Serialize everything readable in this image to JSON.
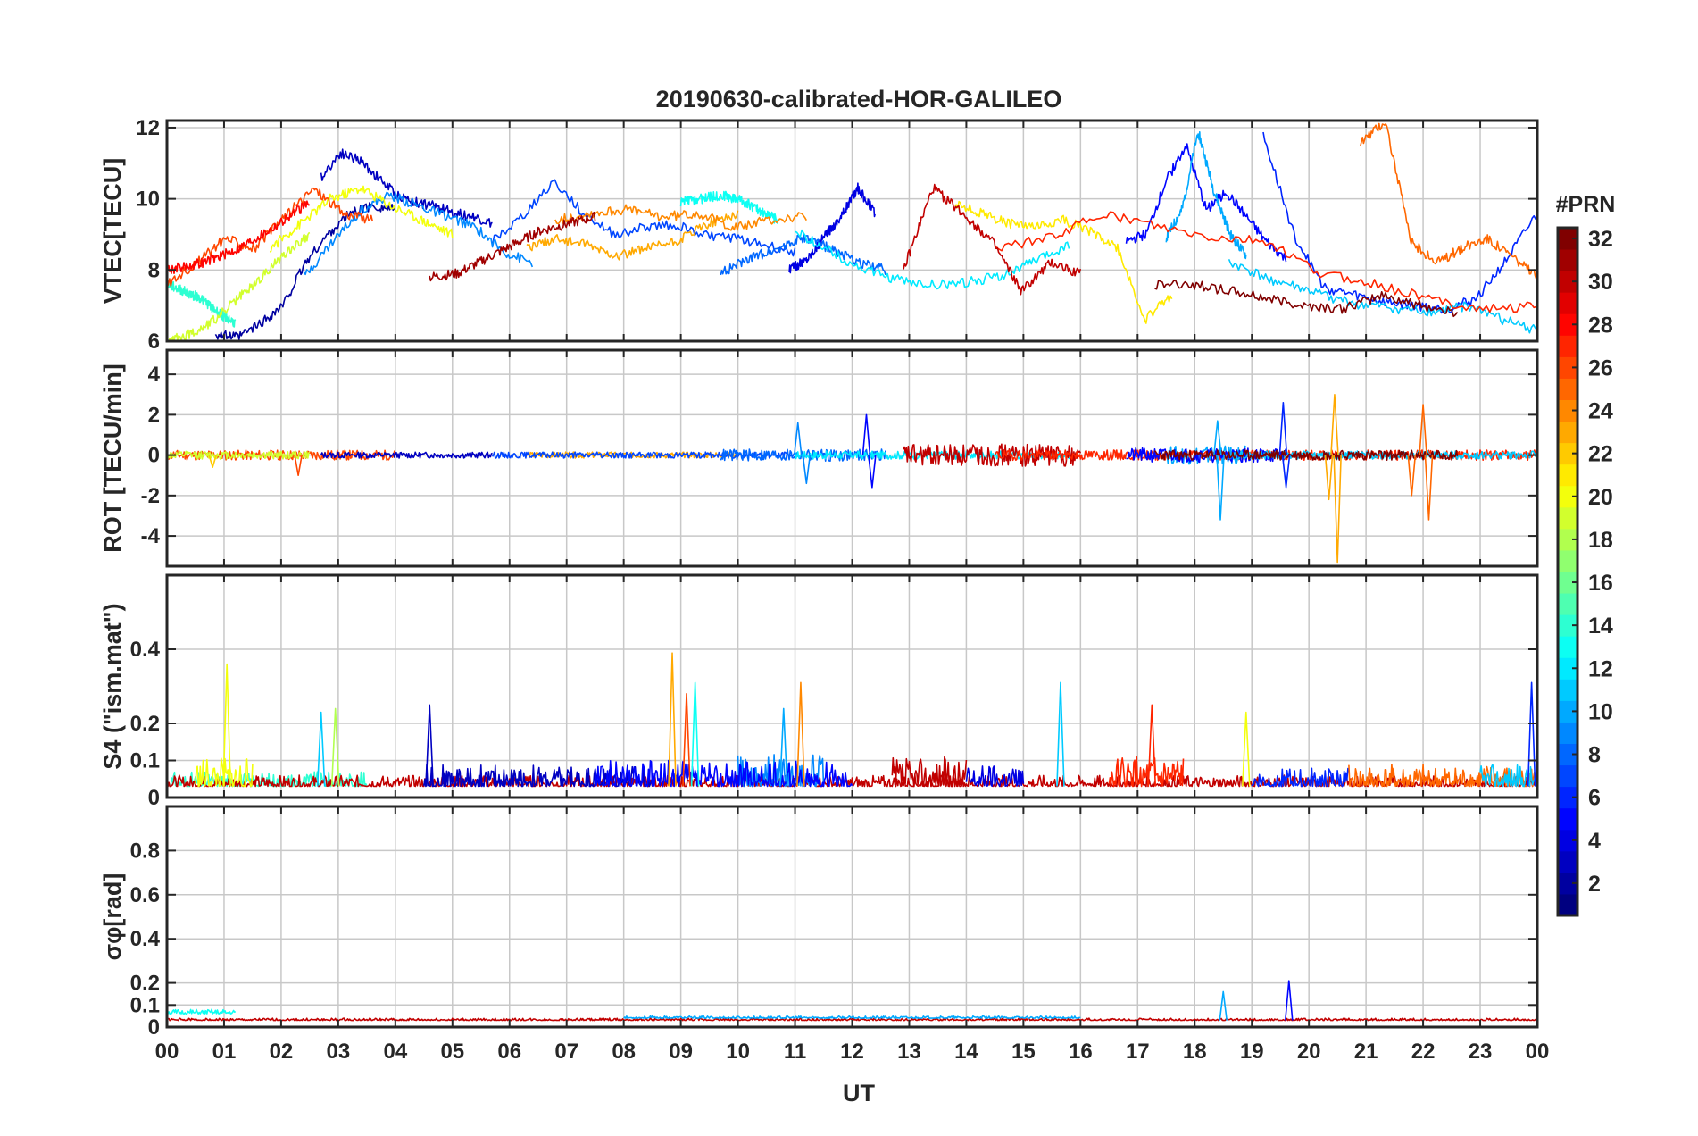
{
  "chart_data": {
    "type": "line",
    "title": "20190630-calibrated-HOR-GALILEO",
    "xlabel": "UT",
    "x_ticks": [
      "00",
      "01",
      "02",
      "03",
      "04",
      "05",
      "06",
      "07",
      "08",
      "09",
      "10",
      "11",
      "12",
      "13",
      "14",
      "15",
      "16",
      "17",
      "18",
      "19",
      "20",
      "21",
      "22",
      "23",
      "00"
    ],
    "xlim": [
      0,
      24
    ],
    "grid": true,
    "colorbar": {
      "title": "#PRN",
      "range": [
        1,
        32
      ],
      "ticks": [
        2,
        4,
        6,
        8,
        10,
        12,
        14,
        16,
        18,
        20,
        22,
        24,
        26,
        28,
        30,
        32
      ],
      "colormap": "jet"
    },
    "panels": [
      {
        "id": "vtec",
        "ylabel": "VTEC[TECU]",
        "ylim": [
          6,
          12.2
        ],
        "yticks": [
          6,
          8,
          10,
          12
        ],
        "series": [
          {
            "prn": 2,
            "segments": [
              {
                "x0": 0.85,
                "x1": 4.0,
                "pts": [
                  6.2,
                  6.1,
                  6.5,
                  7.0,
                  8.2,
                  9.0,
                  9.6,
                  9.8,
                  9.7
                ]
              }
            ]
          },
          {
            "prn": 3,
            "segments": [
              {
                "x0": 2.7,
                "x1": 5.7,
                "pts": [
                  10.6,
                  11.3,
                  11.1,
                  10.6,
                  10.1,
                  9.9,
                  9.8,
                  9.6,
                  9.5,
                  9.3
                ]
              }
            ]
          },
          {
            "prn": 4,
            "segments": [
              {
                "x0": 10.9,
                "x1": 12.4,
                "pts": [
                  8.0,
                  8.3,
                  8.9,
                  9.5,
                  10.3,
                  9.6
                ]
              }
            ]
          },
          {
            "prn": 5,
            "segments": [
              {
                "x0": 16.8,
                "x1": 19.6,
                "pts": [
                  8.8,
                  9.0,
                  10.5,
                  11.5,
                  9.7,
                  10.2,
                  9.5,
                  8.8,
                  8.3
                ]
              }
            ]
          },
          {
            "prn": 6,
            "segments": [
              {
                "x0": 19.2,
                "x1": 24.0,
                "pts": [
                  11.8,
                  9.0,
                  7.5,
                  7.3,
                  7.1,
                  7.0,
                  6.9,
                  7.2,
                  8.3,
                  9.6
                ]
              }
            ]
          },
          {
            "prn": 7,
            "segments": [
              {
                "x0": 5.7,
                "x1": 11.0,
                "pts": [
                  8.8,
                  9.5,
                  10.5,
                  9.6,
                  9.0,
                  9.2,
                  9.3,
                  9.0,
                  8.9,
                  8.7,
                  8.5
                ]
              }
            ]
          },
          {
            "prn": 8,
            "segments": [
              {
                "x0": 9.7,
                "x1": 12.6,
                "pts": [
                  7.9,
                  8.3,
                  8.6,
                  8.9,
                  8.6,
                  8.2,
                  8.0
                ]
              }
            ]
          },
          {
            "prn": 9,
            "segments": [
              {
                "x0": 2.4,
                "x1": 6.4,
                "pts": [
                  7.8,
                  8.8,
                  9.7,
                  10.1,
                  9.8,
                  9.5,
                  9.2,
                  8.5,
                  8.2
                ]
              }
            ]
          },
          {
            "prn": 10,
            "segments": [
              {
                "x0": 17.5,
                "x1": 18.9,
                "pts": [
                  8.9,
                  9.7,
                  11.9,
                  10.2,
                  9.0,
                  8.4
                ]
              }
            ]
          },
          {
            "prn": 11,
            "segments": [
              {
                "x0": 18.6,
                "x1": 24.0,
                "pts": [
                  8.2,
                  7.8,
                  7.5,
                  7.2,
                  7.0,
                  6.9,
                  6.8,
                  7.0,
                  6.6,
                  6.3
                ]
              }
            ]
          },
          {
            "prn": 12,
            "segments": [
              {
                "x0": 11.0,
                "x1": 15.8,
                "pts": [
                  9.1,
                  8.6,
                  8.1,
                  7.8,
                  7.6,
                  7.6,
                  7.7,
                  7.9,
                  8.3,
                  8.7
                ]
              }
            ]
          },
          {
            "prn": 13,
            "segments": [
              {
                "x0": 9.0,
                "x1": 10.7,
                "pts": [
                  9.9,
                  10.0,
                  10.1,
                  10.0,
                  9.7,
                  9.4
                ]
              }
            ]
          },
          {
            "prn": 14,
            "segments": [
              {
                "x0": 0.0,
                "x1": 1.2,
                "pts": [
                  7.6,
                  7.4,
                  7.2,
                  6.8,
                  6.5
                ]
              }
            ]
          },
          {
            "prn": 19,
            "segments": [
              {
                "x0": 0.0,
                "x1": 2.5,
                "pts": [
                  6.0,
                  6.2,
                  6.6,
                  7.2,
                  7.8,
                  8.5,
                  9.0
                ]
              }
            ]
          },
          {
            "prn": 20,
            "segments": [
              {
                "x0": 1.8,
                "x1": 5.0,
                "pts": [
                  8.6,
                  9.3,
                  10.0,
                  10.3,
                  9.8,
                  9.4,
                  9.0
                ]
              }
            ]
          },
          {
            "prn": 21,
            "segments": [
              {
                "x0": 13.8,
                "x1": 17.6,
                "pts": [
                  9.9,
                  9.6,
                  9.3,
                  9.2,
                  9.4,
                  9.1,
                  8.6,
                  6.6,
                  7.3
                ]
              }
            ]
          },
          {
            "prn": 23,
            "segments": [
              {
                "x0": 6.3,
                "x1": 10.0,
                "pts": [
                  8.6,
                  8.9,
                  8.7,
                  8.4,
                  8.6,
                  8.8,
                  9.3,
                  9.6
                ]
              }
            ]
          },
          {
            "prn": 24,
            "segments": [
              {
                "x0": 6.8,
                "x1": 11.2,
                "pts": [
                  9.4,
                  9.6,
                  9.7,
                  9.5,
                  9.6,
                  9.2,
                  9.4,
                  9.5
                ]
              }
            ]
          },
          {
            "prn": 25,
            "segments": [
              {
                "x0": 20.9,
                "x1": 24.0,
                "pts": [
                  11.6,
                  12.2,
                  8.8,
                  8.2,
                  8.6,
                  8.9,
                  8.4,
                  7.8
                ]
              }
            ]
          },
          {
            "prn": 26,
            "segments": [
              {
                "x0": 0.0,
                "x1": 3.6,
                "pts": [
                  7.6,
                  8.2,
                  8.9,
                  8.6,
                  9.5,
                  10.3,
                  9.6,
                  9.4
                ]
              }
            ]
          },
          {
            "prn": 27,
            "segments": [
              {
                "x0": 14.5,
                "x1": 24.0,
                "pts": [
                  8.6,
                  8.9,
                  9.6,
                  9.2,
                  8.9,
                  8.8,
                  7.9,
                  7.6,
                  7.2,
                  6.9,
                  7.0
                ]
              }
            ]
          },
          {
            "prn": 28,
            "segments": [
              {
                "x0": 0.0,
                "x1": 2.5,
                "pts": [
                  8.0,
                  8.2,
                  8.6,
                  9.2,
                  9.9
                ]
              }
            ]
          },
          {
            "prn": 30,
            "segments": [
              {
                "x0": 12.9,
                "x1": 16.0,
                "pts": [
                  8.0,
                  10.3,
                  9.6,
                  8.8,
                  7.4,
                  8.2,
                  7.9
                ]
              }
            ]
          },
          {
            "prn": 31,
            "segments": [
              {
                "x0": 4.6,
                "x1": 7.5,
                "pts": [
                  7.8,
                  7.9,
                  8.3,
                  8.7,
                  9.1,
                  9.3,
                  9.5
                ]
              }
            ]
          },
          {
            "prn": 32,
            "segments": [
              {
                "x0": 17.3,
                "x1": 22.6,
                "pts": [
                  7.6,
                  7.6,
                  7.4,
                  7.2,
                  7.0,
                  6.9,
                  7.3,
                  7.0,
                  6.8
                ]
              }
            ]
          }
        ]
      },
      {
        "id": "rot",
        "ylabel": "ROT [TECU/min]",
        "ylim": [
          -5.5,
          5.2
        ],
        "yticks": [
          -4,
          -2,
          0,
          2,
          4
        ],
        "noise": [
          {
            "prn": 26,
            "x0": 0.0,
            "x1": 4.0,
            "amp": 0.25,
            "seed": 11
          },
          {
            "prn": 19,
            "x0": 0.0,
            "x1": 2.5,
            "amp": 0.2,
            "seed": 12
          },
          {
            "prn": 3,
            "x0": 2.7,
            "x1": 5.7,
            "amp": 0.15,
            "seed": 13
          },
          {
            "prn": 23,
            "x0": 6.3,
            "x1": 10.0,
            "amp": 0.15,
            "seed": 14
          },
          {
            "prn": 7,
            "x0": 5.7,
            "x1": 11.0,
            "amp": 0.15,
            "seed": 15
          },
          {
            "prn": 8,
            "x0": 9.7,
            "x1": 12.6,
            "amp": 0.3,
            "seed": 16
          },
          {
            "prn": 12,
            "x0": 11.0,
            "x1": 15.8,
            "amp": 0.2,
            "seed": 17
          },
          {
            "prn": 30,
            "x0": 12.9,
            "x1": 16.0,
            "amp": 0.55,
            "seed": 18
          },
          {
            "prn": 27,
            "x0": 14.5,
            "x1": 24.0,
            "amp": 0.25,
            "seed": 19
          },
          {
            "prn": 10,
            "x0": 17.5,
            "x1": 18.9,
            "amp": 0.45,
            "seed": 20
          },
          {
            "prn": 5,
            "x0": 16.8,
            "x1": 19.6,
            "amp": 0.35,
            "seed": 21
          },
          {
            "prn": 11,
            "x0": 18.6,
            "x1": 24.0,
            "amp": 0.2,
            "seed": 22
          },
          {
            "prn": 32,
            "x0": 17.3,
            "x1": 22.6,
            "amp": 0.25,
            "seed": 23
          }
        ],
        "spikes": [
          {
            "prn": 9,
            "x": 11.05,
            "v": 1.6
          },
          {
            "prn": 9,
            "x": 11.2,
            "v": -1.4
          },
          {
            "prn": 5,
            "x": 12.25,
            "v": 2.0
          },
          {
            "prn": 5,
            "x": 12.35,
            "v": -1.6
          },
          {
            "prn": 10,
            "x": 18.4,
            "v": 1.7
          },
          {
            "prn": 10,
            "x": 18.45,
            "v": -3.2
          },
          {
            "prn": 6,
            "x": 19.55,
            "v": 2.6
          },
          {
            "prn": 6,
            "x": 19.6,
            "v": -1.6
          },
          {
            "prn": 23,
            "x": 20.45,
            "v": 3.0
          },
          {
            "prn": 23,
            "x": 20.5,
            "v": -5.3
          },
          {
            "prn": 23,
            "x": 20.35,
            "v": -2.2
          },
          {
            "prn": 25,
            "x": 22.0,
            "v": 2.5
          },
          {
            "prn": 25,
            "x": 22.1,
            "v": -3.2
          },
          {
            "prn": 25,
            "x": 21.8,
            "v": -2.0
          },
          {
            "prn": 26,
            "x": 2.3,
            "v": -1.0
          },
          {
            "prn": 22,
            "x": 0.8,
            "v": -0.6
          }
        ]
      },
      {
        "id": "s4",
        "ylabel": "S4 (\"ism.mat\")",
        "ylim": [
          0,
          0.6
        ],
        "yticks": [
          0,
          0.1,
          0.2,
          0.4
        ],
        "noise": [
          {
            "prn": 14,
            "x0": 0.0,
            "x1": 3.5,
            "amp": 0.04,
            "seed": 31
          },
          {
            "prn": 30,
            "x0": 0.0,
            "x1": 24.0,
            "amp": 0.03,
            "seed": 32
          },
          {
            "prn": 20,
            "x0": 0.5,
            "x1": 1.5,
            "amp": 0.08,
            "seed": 33
          },
          {
            "prn": 3,
            "x0": 4.5,
            "x1": 8.5,
            "amp": 0.06,
            "seed": 34
          },
          {
            "prn": 9,
            "x0": 10.0,
            "x1": 11.5,
            "amp": 0.09,
            "seed": 35
          },
          {
            "prn": 5,
            "x0": 7.5,
            "x1": 12.0,
            "amp": 0.07,
            "seed": 36
          },
          {
            "prn": 30,
            "x0": 12.7,
            "x1": 14.0,
            "amp": 0.08,
            "seed": 37
          },
          {
            "prn": 4,
            "x0": 14.0,
            "x1": 15.0,
            "amp": 0.06,
            "seed": 38
          },
          {
            "prn": 27,
            "x0": 16.5,
            "x1": 17.8,
            "amp": 0.08,
            "seed": 39
          },
          {
            "prn": 6,
            "x0": 19.0,
            "x1": 20.7,
            "amp": 0.05,
            "seed": 40
          },
          {
            "prn": 25,
            "x0": 20.7,
            "x1": 24.0,
            "amp": 0.06,
            "seed": 41
          },
          {
            "prn": 11,
            "x0": 23.0,
            "x1": 24.0,
            "amp": 0.06,
            "seed": 42
          }
        ],
        "spikes": [
          {
            "prn": 20,
            "x": 1.05,
            "v": 0.36
          },
          {
            "prn": 11,
            "x": 2.7,
            "v": 0.23
          },
          {
            "prn": 18,
            "x": 2.95,
            "v": 0.24
          },
          {
            "prn": 3,
            "x": 4.6,
            "v": 0.25
          },
          {
            "prn": 23,
            "x": 8.85,
            "v": 0.39
          },
          {
            "prn": 13,
            "x": 9.25,
            "v": 0.31
          },
          {
            "prn": 26,
            "x": 9.1,
            "v": 0.28
          },
          {
            "prn": 24,
            "x": 11.1,
            "v": 0.31
          },
          {
            "prn": 10,
            "x": 10.8,
            "v": 0.24
          },
          {
            "prn": 11,
            "x": 15.65,
            "v": 0.31
          },
          {
            "prn": 27,
            "x": 17.25,
            "v": 0.25
          },
          {
            "prn": 20,
            "x": 18.9,
            "v": 0.23
          },
          {
            "prn": 6,
            "x": 23.9,
            "v": 0.31
          }
        ]
      },
      {
        "id": "sigma",
        "ylabel": "σφ[rad]",
        "ylim": [
          0,
          1.0
        ],
        "yticks": [
          0,
          0.1,
          0.2,
          0.4,
          0.6,
          0.8
        ],
        "noise": [
          {
            "prn": 13,
            "x0": 0.0,
            "x1": 1.2,
            "amp": 0.02,
            "base": 0.06,
            "seed": 51
          },
          {
            "prn": 30,
            "x0": 0.0,
            "x1": 24.0,
            "amp": 0.01,
            "base": 0.03,
            "seed": 52
          },
          {
            "prn": 10,
            "x0": 8.0,
            "x1": 16.0,
            "amp": 0.01,
            "base": 0.04,
            "seed": 53
          }
        ],
        "spikes": [
          {
            "prn": 10,
            "x": 18.5,
            "v": 0.16
          },
          {
            "prn": 5,
            "x": 19.65,
            "v": 0.21
          }
        ]
      }
    ]
  }
}
